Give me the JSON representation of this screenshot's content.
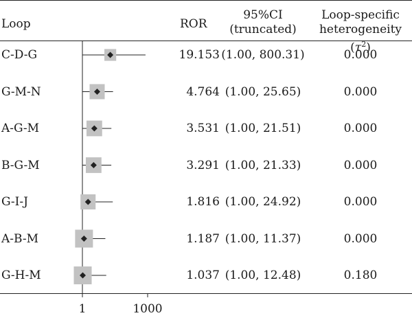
{
  "headers": {
    "loop": "Loop",
    "ror": "ROR",
    "ci_line1": "95%CI",
    "ci_line2": "(truncated)",
    "het_line1": "Loop-specific",
    "het_line2_prefix": "heterogeneity (",
    "het_line2_tau": "τ",
    "het_line2_sup": "2",
    "het_line2_suffix": ")"
  },
  "chart_data": {
    "type": "forest",
    "scale": "log",
    "xlim": [
      1,
      1000
    ],
    "x_ticks": [
      {
        "value": 1,
        "label": "1"
      },
      {
        "value": 1000,
        "label": "1000"
      }
    ],
    "reference_line": 1,
    "rows": [
      {
        "loop": "C-D-G",
        "ror": 19.153,
        "ror_label": "19.153",
        "ci_low": 1.0,
        "ci_high": 800.31,
        "ci_label": "(1.00, 800.31)",
        "tau2": "0.000",
        "weight": 0.45
      },
      {
        "loop": "G-M-N",
        "ror": 4.764,
        "ror_label": "4.764",
        "ci_low": 1.0,
        "ci_high": 25.65,
        "ci_label": "(1.00, 25.65)",
        "tau2": "0.000",
        "weight": 0.75
      },
      {
        "loop": "A-G-M",
        "ror": 3.531,
        "ror_label": "3.531",
        "ci_low": 1.0,
        "ci_high": 21.51,
        "ci_label": "(1.00, 21.51)",
        "tau2": "0.000",
        "weight": 0.8
      },
      {
        "loop": "B-G-M",
        "ror": 3.291,
        "ror_label": "3.291",
        "ci_low": 1.0,
        "ci_high": 21.33,
        "ci_label": "(1.00, 21.33)",
        "tau2": "0.000",
        "weight": 0.8
      },
      {
        "loop": "G-I-J",
        "ror": 1.816,
        "ror_label": "1.816",
        "ci_low": 1.0,
        "ci_high": 24.92,
        "ci_label": "(1.00, 24.92)",
        "tau2": "0.000",
        "weight": 0.75
      },
      {
        "loop": "A-B-M",
        "ror": 1.187,
        "ror_label": "1.187",
        "ci_low": 1.0,
        "ci_high": 11.37,
        "ci_label": "(1.00, 11.37)",
        "tau2": "0.000",
        "weight": 1.0
      },
      {
        "loop": "G-H-M",
        "ror": 1.037,
        "ror_label": "1.037",
        "ci_low": 1.0,
        "ci_high": 12.48,
        "ci_label": "(1.00, 12.48)",
        "tau2": "0.180",
        "weight": 1.0
      }
    ],
    "colors": {
      "box": "#c2c2c2",
      "point": "#222222",
      "line": "#222222"
    }
  }
}
